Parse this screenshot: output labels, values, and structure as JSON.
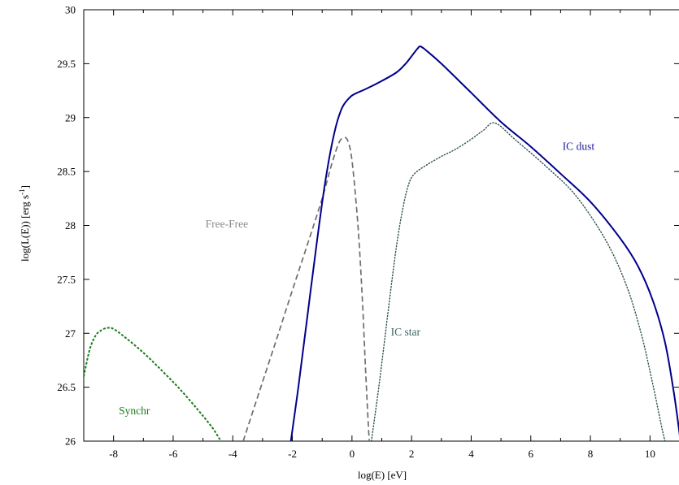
{
  "chart_data": {
    "type": "line",
    "title": "",
    "xlabel": "log(E) [eV]",
    "ylabel_main": "log(L(E)) [erg s",
    "ylabel_sup": "-1",
    "ylabel_end": "]",
    "xlim": [
      -9,
      11
    ],
    "ylim": [
      26,
      30
    ],
    "xticks": [
      -8,
      -6,
      -4,
      -2,
      0,
      2,
      4,
      6,
      8,
      10
    ],
    "xtick_labels": [
      "-8",
      "-6",
      "-4",
      "-2",
      "0",
      "2",
      "4",
      "6",
      "8",
      "10"
    ],
    "yticks": [
      26,
      26.5,
      27,
      27.5,
      28,
      28.5,
      29,
      29.5,
      30
    ],
    "ytick_labels": [
      "26",
      "26.5",
      "27",
      "27.5",
      "28",
      "28.5",
      "29",
      "29.5",
      "30"
    ],
    "grid": false,
    "series": [
      {
        "name": "Synchr",
        "color": "#1a7a1a",
        "style": "dashed-fine",
        "x": [
          -9.0,
          -8.8,
          -8.6,
          -8.4,
          -8.2,
          -8.0,
          -7.6,
          -7.0,
          -6.4,
          -5.8,
          -5.2,
          -4.7,
          -4.4
        ],
        "y": [
          26.6,
          26.85,
          26.98,
          27.03,
          27.05,
          27.04,
          26.96,
          26.82,
          26.66,
          26.49,
          26.3,
          26.13,
          26.0
        ]
      },
      {
        "name": "Free-Free",
        "color": "#6e6e6e",
        "style": "dashed",
        "x": [
          -3.65,
          -3.0,
          -2.5,
          -2.0,
          -1.5,
          -1.0,
          -0.7,
          -0.45,
          -0.3,
          -0.15,
          0.0,
          0.2,
          0.35,
          0.45,
          0.52,
          0.58
        ],
        "y": [
          26.0,
          26.55,
          26.97,
          27.4,
          27.82,
          28.25,
          28.55,
          28.76,
          28.81,
          28.79,
          28.6,
          28.0,
          27.3,
          26.7,
          26.3,
          26.0
        ]
      },
      {
        "name": "IC star",
        "color": "#2a5050",
        "style": "dotted",
        "x": [
          0.65,
          0.9,
          1.1,
          1.3,
          1.5,
          1.7,
          1.9,
          2.1,
          2.5,
          3.0,
          3.5,
          4.0,
          4.4,
          4.8,
          5.5,
          6.5,
          7.5,
          8.5,
          9.2,
          9.7,
          10.1,
          10.4,
          10.55
        ],
        "y": [
          26.0,
          26.5,
          26.95,
          27.4,
          27.82,
          28.15,
          28.38,
          28.48,
          28.56,
          28.64,
          28.71,
          28.8,
          28.88,
          28.95,
          28.79,
          28.55,
          28.28,
          27.87,
          27.45,
          27.0,
          26.52,
          26.12,
          25.95
        ]
      },
      {
        "name": "IC dust",
        "color": "#00008b",
        "style": "solid",
        "x": [
          -2.05,
          -1.8,
          -1.5,
          -1.2,
          -0.9,
          -0.6,
          -0.35,
          -0.1,
          0.1,
          0.5,
          1.0,
          1.5,
          1.8,
          2.0,
          2.2,
          2.3,
          2.5,
          3.0,
          4.0,
          5.0,
          6.0,
          7.0,
          8.0,
          9.0,
          9.6,
          10.1,
          10.5,
          10.8,
          11.0
        ],
        "y": [
          26.0,
          26.5,
          27.15,
          27.8,
          28.4,
          28.85,
          29.08,
          29.18,
          29.22,
          29.27,
          29.34,
          29.42,
          29.5,
          29.57,
          29.64,
          29.66,
          29.62,
          29.5,
          29.23,
          28.96,
          28.73,
          28.48,
          28.22,
          27.88,
          27.62,
          27.3,
          26.92,
          26.45,
          26.05
        ]
      }
    ],
    "annotations": [
      {
        "text": "Synchr",
        "x": -7.3,
        "y": 26.25,
        "color": "#1a7a1a"
      },
      {
        "text": "Free-Free",
        "x": -4.2,
        "y": 27.98,
        "color": "#8a8a8a"
      },
      {
        "text": "IC star",
        "x": 1.8,
        "y": 26.98,
        "color": "#3a6464"
      },
      {
        "text": "IC dust",
        "x": 7.6,
        "y": 28.7,
        "color": "#1f1f9e"
      }
    ]
  }
}
